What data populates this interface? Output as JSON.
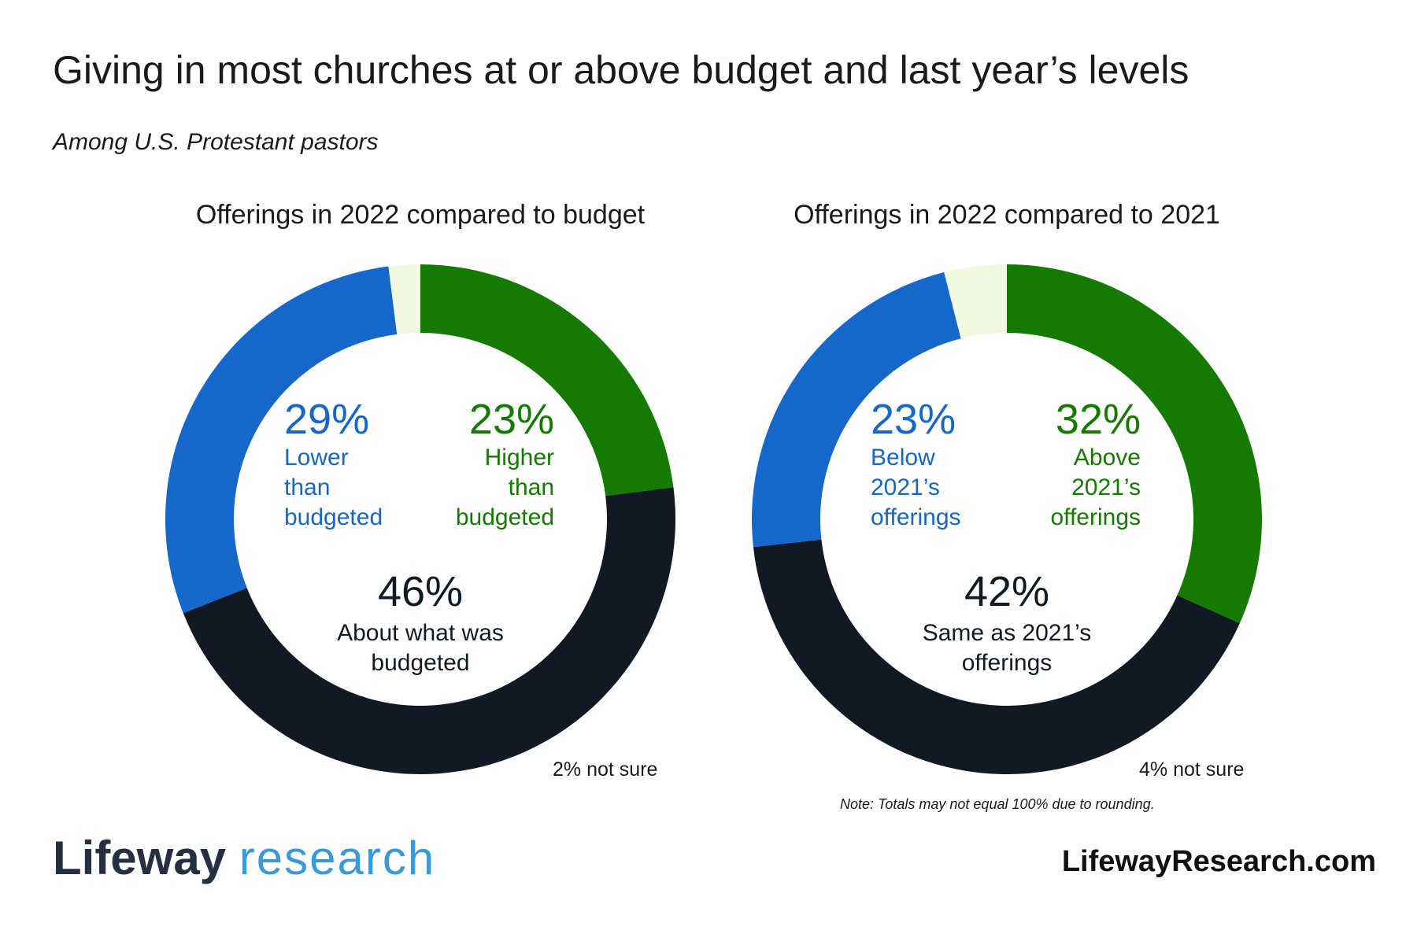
{
  "title": "Giving in most churches at or above budget and last year’s levels",
  "subtitle": "Among U.S. Protestant pastors",
  "chart_data": [
    {
      "type": "pie",
      "title": "Offerings in 2022 compared to budget",
      "categories": [
        "Higher than budgeted",
        "About what was budgeted",
        "Lower than budgeted",
        "not sure"
      ],
      "values": [
        23,
        46,
        29,
        2
      ],
      "value_labels": [
        "23%",
        "46%",
        "29%",
        "2%"
      ],
      "colors": [
        "#157a02",
        "#111a24",
        "#1567c9",
        "#f1f9e1"
      ]
    },
    {
      "type": "pie",
      "title": "Offerings in 2022 compared to 2021",
      "categories": [
        "Above 2021’s offerings",
        "Same as 2021’s offerings",
        "Below 2021’s offerings",
        "not sure"
      ],
      "values": [
        32,
        42,
        23,
        4
      ],
      "value_labels": [
        "32%",
        "42%",
        "23%",
        "4%"
      ],
      "colors": [
        "#157a02",
        "#111a24",
        "#1567c9",
        "#f1f9e1"
      ]
    }
  ],
  "note": "Note: Totals may not equal 100% due to rounding.",
  "footer": {
    "brand": "Lifeway",
    "brand_suffix": "research",
    "url": "LifewayResearch.com"
  }
}
